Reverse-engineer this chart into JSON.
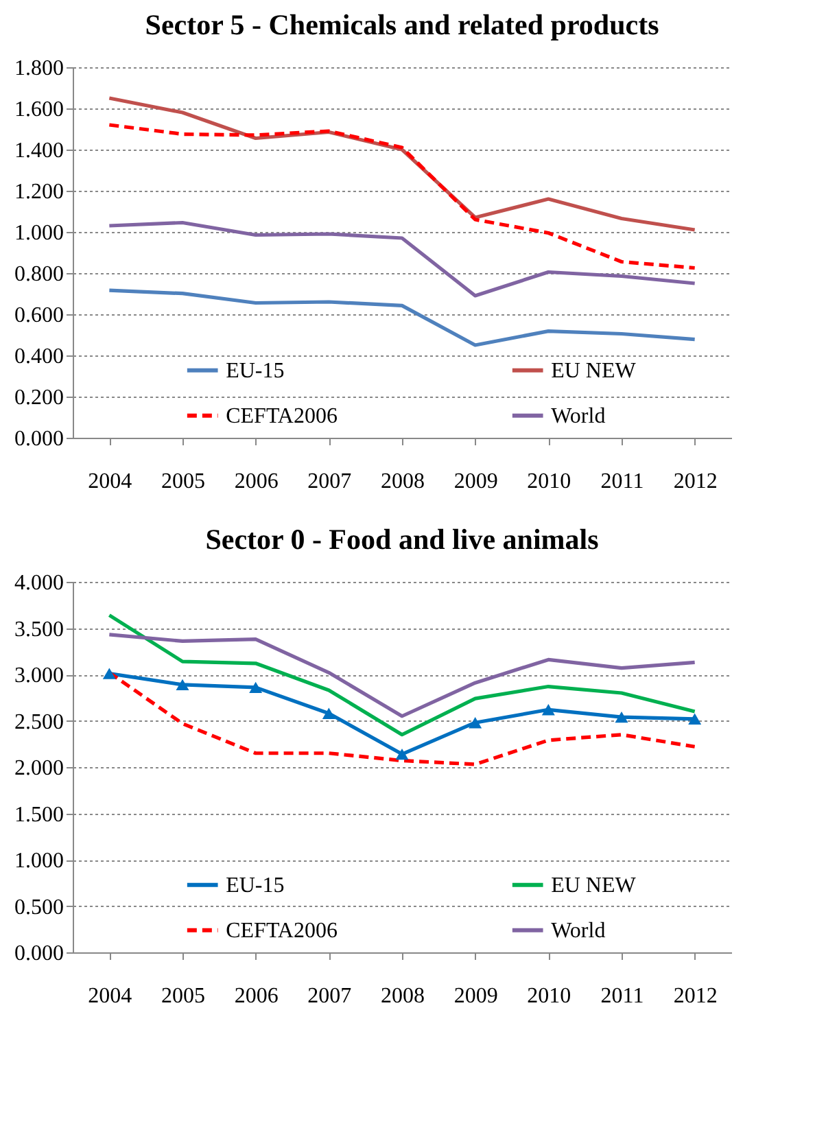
{
  "chart_data": [
    {
      "type": "line",
      "title": "Sector 5 - Chemicals and related products",
      "categories": [
        "2004",
        "2005",
        "2006",
        "2007",
        "2008",
        "2009",
        "2010",
        "2011",
        "2012"
      ],
      "ylim": [
        0,
        1.8
      ],
      "yticks": [
        {
          "value": 0,
          "label": "0.000"
        },
        {
          "value": 0.2,
          "label": "0.200"
        },
        {
          "value": 0.4,
          "label": "0.400"
        },
        {
          "value": 0.6,
          "label": "0.600"
        },
        {
          "value": 0.8,
          "label": "0.800"
        },
        {
          "value": 1.0,
          "label": "1.000"
        },
        {
          "value": 1.2,
          "label": "1.200"
        },
        {
          "value": 1.4,
          "label": "1.400"
        },
        {
          "value": 1.6,
          "label": "1.600"
        },
        {
          "value": 1.8,
          "label": "1.800"
        }
      ],
      "grid": "y",
      "legend": "bottom",
      "series": [
        {
          "name": "EU-15",
          "color": "#4f81bd",
          "line_style": "solid",
          "values": [
            0.716,
            0.701,
            0.655,
            0.66,
            0.642,
            0.45,
            0.518,
            0.505,
            0.478
          ]
        },
        {
          "name": "EU NEW",
          "color": "#c0504d",
          "line_style": "solid",
          "values": [
            1.65,
            1.58,
            1.455,
            1.485,
            1.4,
            1.07,
            1.16,
            1.065,
            1.01
          ]
        },
        {
          "name": "CEFTA2006",
          "color": "#ff0000",
          "line_style": "dashed",
          "values": [
            1.52,
            1.475,
            1.47,
            1.49,
            1.41,
            1.06,
            0.995,
            0.855,
            0.825
          ]
        },
        {
          "name": "World",
          "color": "#8064a2",
          "line_style": "solid",
          "values": [
            1.03,
            1.045,
            0.985,
            0.99,
            0.97,
            0.69,
            0.805,
            0.785,
            0.75
          ]
        }
      ]
    },
    {
      "type": "line",
      "title": "Sector 0 - Food and live animals",
      "categories": [
        "2004",
        "2005",
        "2006",
        "2007",
        "2008",
        "2009",
        "2010",
        "2011",
        "2012"
      ],
      "ylim": [
        0,
        4.0
      ],
      "yticks": [
        {
          "value": 0,
          "label": "0.000"
        },
        {
          "value": 0.5,
          "label": "0.500"
        },
        {
          "value": 1.0,
          "label": "1.000"
        },
        {
          "value": 1.5,
          "label": "1.500"
        },
        {
          "value": 2.0,
          "label": "2.000"
        },
        {
          "value": 2.5,
          "label": "2.500"
        },
        {
          "value": 3.0,
          "label": "3.000"
        },
        {
          "value": 3.5,
          "label": "3.500"
        },
        {
          "value": 4.0,
          "label": "4.000"
        }
      ],
      "grid": "y",
      "legend": "bottom",
      "series": [
        {
          "name": "EU-15",
          "color": "#0070c0",
          "line_style": "solid",
          "marker": "triangle",
          "values": [
            3.01,
            2.89,
            2.86,
            2.58,
            2.14,
            2.48,
            2.62,
            2.54,
            2.52
          ]
        },
        {
          "name": "EU NEW",
          "color": "#00b050",
          "line_style": "solid",
          "values": [
            3.64,
            3.14,
            3.12,
            2.83,
            2.35,
            2.74,
            2.87,
            2.8,
            2.6
          ]
        },
        {
          "name": "CEFTA2006",
          "color": "#ff0000",
          "line_style": "dashed",
          "values": [
            3.02,
            2.47,
            2.15,
            2.15,
            2.07,
            2.03,
            2.29,
            2.35,
            2.22
          ]
        },
        {
          "name": "World",
          "color": "#8064a2",
          "line_style": "solid",
          "values": [
            3.43,
            3.36,
            3.38,
            3.02,
            2.55,
            2.91,
            3.16,
            3.07,
            3.13
          ]
        }
      ]
    }
  ]
}
